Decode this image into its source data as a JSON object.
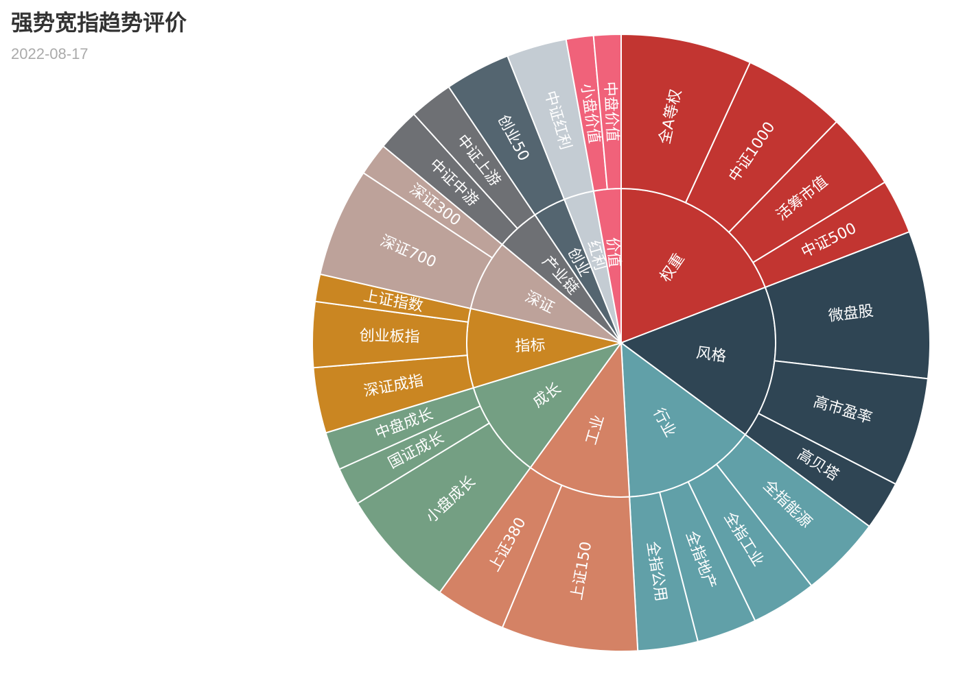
{
  "title": "强势宽指趋势评价",
  "subtitle": "2022-08-17",
  "chart_data": {
    "type": "sunburst",
    "title": "强势宽指趋势评价",
    "subtitle": "2022-08-17",
    "unit_note": "values are arc sizes in degrees of the full circle",
    "groups": [
      {
        "name": "权重",
        "color": "#c23531",
        "children": [
          {
            "name": "全A等权",
            "value": 24
          },
          {
            "name": "中证1000",
            "value": 19
          },
          {
            "name": "活筹市值",
            "value": 14
          },
          {
            "name": "中证500",
            "value": 10
          }
        ]
      },
      {
        "name": "风格",
        "color": "#2f4554",
        "children": [
          {
            "name": "微盘股",
            "value": 27
          },
          {
            "name": "高市盈率",
            "value": 20
          },
          {
            "name": "高贝塔",
            "value": 9
          }
        ]
      },
      {
        "name": "行业",
        "color": "#61a0a8",
        "children": [
          {
            "name": "全指能源",
            "value": 15
          },
          {
            "name": "全指工业",
            "value": 12
          },
          {
            "name": "全指地产",
            "value": 11
          },
          {
            "name": "全指公用",
            "value": 11
          }
        ]
      },
      {
        "name": "工业",
        "color": "#d48265",
        "children": [
          {
            "name": "上证150",
            "value": 25
          },
          {
            "name": "上证380",
            "value": 13
          }
        ]
      },
      {
        "name": "成长",
        "color": "#749f83",
        "children": [
          {
            "name": "小盘成长",
            "value": 22
          },
          {
            "name": "国证成长",
            "value": 7
          },
          {
            "name": "中盘成长",
            "value": 7
          }
        ]
      },
      {
        "name": "指标",
        "color": "#ca8622",
        "children": [
          {
            "name": "深证成指",
            "value": 12
          },
          {
            "name": "创业板指",
            "value": 12
          },
          {
            "name": "上证指数",
            "value": 5
          }
        ]
      },
      {
        "name": "深证",
        "color": "#bda29a",
        "children": [
          {
            "name": "深证700",
            "value": 20
          },
          {
            "name": "深证300",
            "value": 6
          }
        ]
      },
      {
        "name": "产业链",
        "color": "#6e7074",
        "children": [
          {
            "name": "中证中游",
            "value": 8
          },
          {
            "name": "中证上游",
            "value": 8
          }
        ]
      },
      {
        "name": "创业",
        "color": "#546570",
        "children": [
          {
            "name": "创业50",
            "value": 12
          }
        ]
      },
      {
        "name": "红利",
        "color": "#c4ccd3",
        "children": [
          {
            "name": "中证红利",
            "value": 11
          }
        ]
      },
      {
        "name": "价值",
        "color": "#f0627a",
        "children": [
          {
            "name": "小盘价值",
            "value": 5
          },
          {
            "name": "中盘价值",
            "value": 5
          }
        ]
      }
    ]
  }
}
